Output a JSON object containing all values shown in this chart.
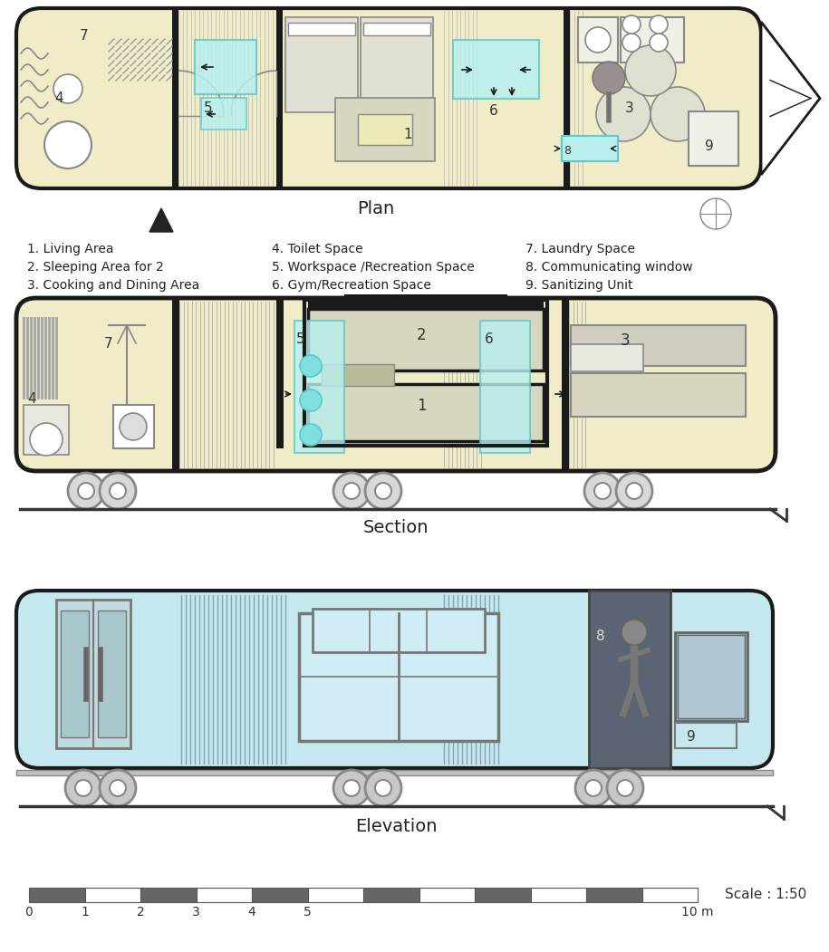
{
  "bg_color": "#ffffff",
  "cream": "#f0ecc8",
  "light_cyan": "#c5e8ef",
  "wall_color": "#1a1a1a",
  "gray_med": "#888888",
  "gray_light": "#cccccc",
  "cyan_accent": "#5fc8c8",
  "dark_section": "#5a6472",
  "plan_label": "Plan",
  "section_label": "Section",
  "elevation_label": "Elevation",
  "scale_label": "Scale : 1:50",
  "legend_col1": [
    "1. Living Area",
    "2. Sleeping Area for 2",
    "3. Cooking and Dining Area"
  ],
  "legend_col2": [
    "4. Toilet Space",
    "5. Workspace /Recreation Space",
    "6. Gym/Recreation Space"
  ],
  "legend_col3": [
    "7. Laundry Space",
    "8. Communicating window",
    "9. Sanitizing Unit"
  ]
}
